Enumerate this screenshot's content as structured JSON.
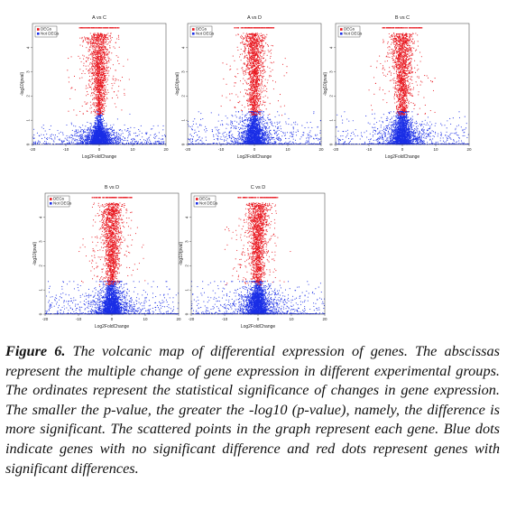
{
  "chart_data": [
    {
      "type": "scatter",
      "title": "A vs C",
      "xlabel": "Log2FoldChange",
      "ylabel": "-log10(pval)",
      "x_ticks": [
        "-20",
        "-10",
        "0",
        "10",
        "20"
      ],
      "y_ticks": [
        "0",
        "1",
        "2",
        "3",
        "4"
      ],
      "xlim": [
        -20,
        20
      ],
      "ylim": [
        0,
        5
      ],
      "legend": {
        "placement": "top-left",
        "entries": [
          "DEGs",
          "Not DEGs"
        ]
      },
      "series": [
        {
          "name": "DEGs",
          "color": "#e8141c",
          "description_x_range": [
            -5,
            5
          ],
          "min_y": 1.1
        },
        {
          "name": "Not DEGs",
          "color": "#1a2ee6",
          "description_x_range": [
            -20,
            20
          ],
          "max_y": 1.1
        }
      ]
    },
    {
      "type": "scatter",
      "title": "A vs D",
      "xlabel": "Log2FoldChange",
      "ylabel": "-log10(pval)",
      "x_ticks": [
        "-20",
        "-10",
        "0",
        "10",
        "20"
      ],
      "y_ticks": [
        "0",
        "1",
        "2",
        "3",
        "4"
      ],
      "xlim": [
        -20,
        20
      ],
      "ylim": [
        0,
        5
      ],
      "legend": {
        "placement": "top-left",
        "entries": [
          "DEGs",
          "Not DEGs"
        ]
      },
      "series": [
        {
          "name": "DEGs",
          "color": "#e8141c"
        },
        {
          "name": "Not DEGs",
          "color": "#1a2ee6"
        }
      ]
    },
    {
      "type": "scatter",
      "title": "B vs C",
      "xlabel": "Log2FoldChange",
      "ylabel": "-log10(pval)",
      "x_ticks": [
        "-20",
        "-10",
        "0",
        "10",
        "20"
      ],
      "y_ticks": [
        "0",
        "1",
        "2",
        "3",
        "4"
      ],
      "xlim": [
        -20,
        20
      ],
      "ylim": [
        0,
        5
      ],
      "legend": {
        "placement": "top-left",
        "entries": [
          "DEGs",
          "Not DEGs"
        ]
      },
      "series": [
        {
          "name": "DEGs",
          "color": "#e8141c"
        },
        {
          "name": "Not DEGs",
          "color": "#1a2ee6"
        }
      ]
    },
    {
      "type": "scatter",
      "title": "B vs D",
      "xlabel": "Log2FoldChange",
      "ylabel": "-log10(pval)",
      "x_ticks": [
        "-20",
        "-10",
        "0",
        "10",
        "20"
      ],
      "y_ticks": [
        "0",
        "1",
        "2",
        "3",
        "4"
      ],
      "xlim": [
        -20,
        20
      ],
      "ylim": [
        0,
        5
      ],
      "legend": {
        "placement": "top-left",
        "entries": [
          "DEGs",
          "Not DEGs"
        ]
      },
      "series": [
        {
          "name": "DEGs",
          "color": "#e8141c"
        },
        {
          "name": "Not DEGs",
          "color": "#1a2ee6"
        }
      ]
    },
    {
      "type": "scatter",
      "title": "C vs D",
      "xlabel": "Log2FoldChange",
      "ylabel": "-log10(pval)",
      "x_ticks": [
        "-20",
        "-10",
        "0",
        "10",
        "20"
      ],
      "y_ticks": [
        "0",
        "1",
        "2",
        "3",
        "4"
      ],
      "xlim": [
        -20,
        20
      ],
      "ylim": [
        0,
        5
      ],
      "legend": {
        "placement": "top-left",
        "entries": [
          "DEGs",
          "Not DEGs"
        ]
      },
      "series": [
        {
          "name": "DEGs",
          "color": "#e8141c"
        },
        {
          "name": "Not DEGs",
          "color": "#1a2ee6"
        }
      ]
    }
  ],
  "caption": {
    "label": "Figure 6.",
    "text": " The volcanic map of differential expression of genes. The abscissas represent the multiple change of gene expression in different experimental groups. The ordinates represent the statistical significance of changes in gene expression. The smaller the p-value, the greater the -log10 (p-value), namely, the difference is more significant. The scattered points in the graph represent each gene. Blue dots indicate genes with no significant difference and red dots represent genes with significant differences."
  }
}
